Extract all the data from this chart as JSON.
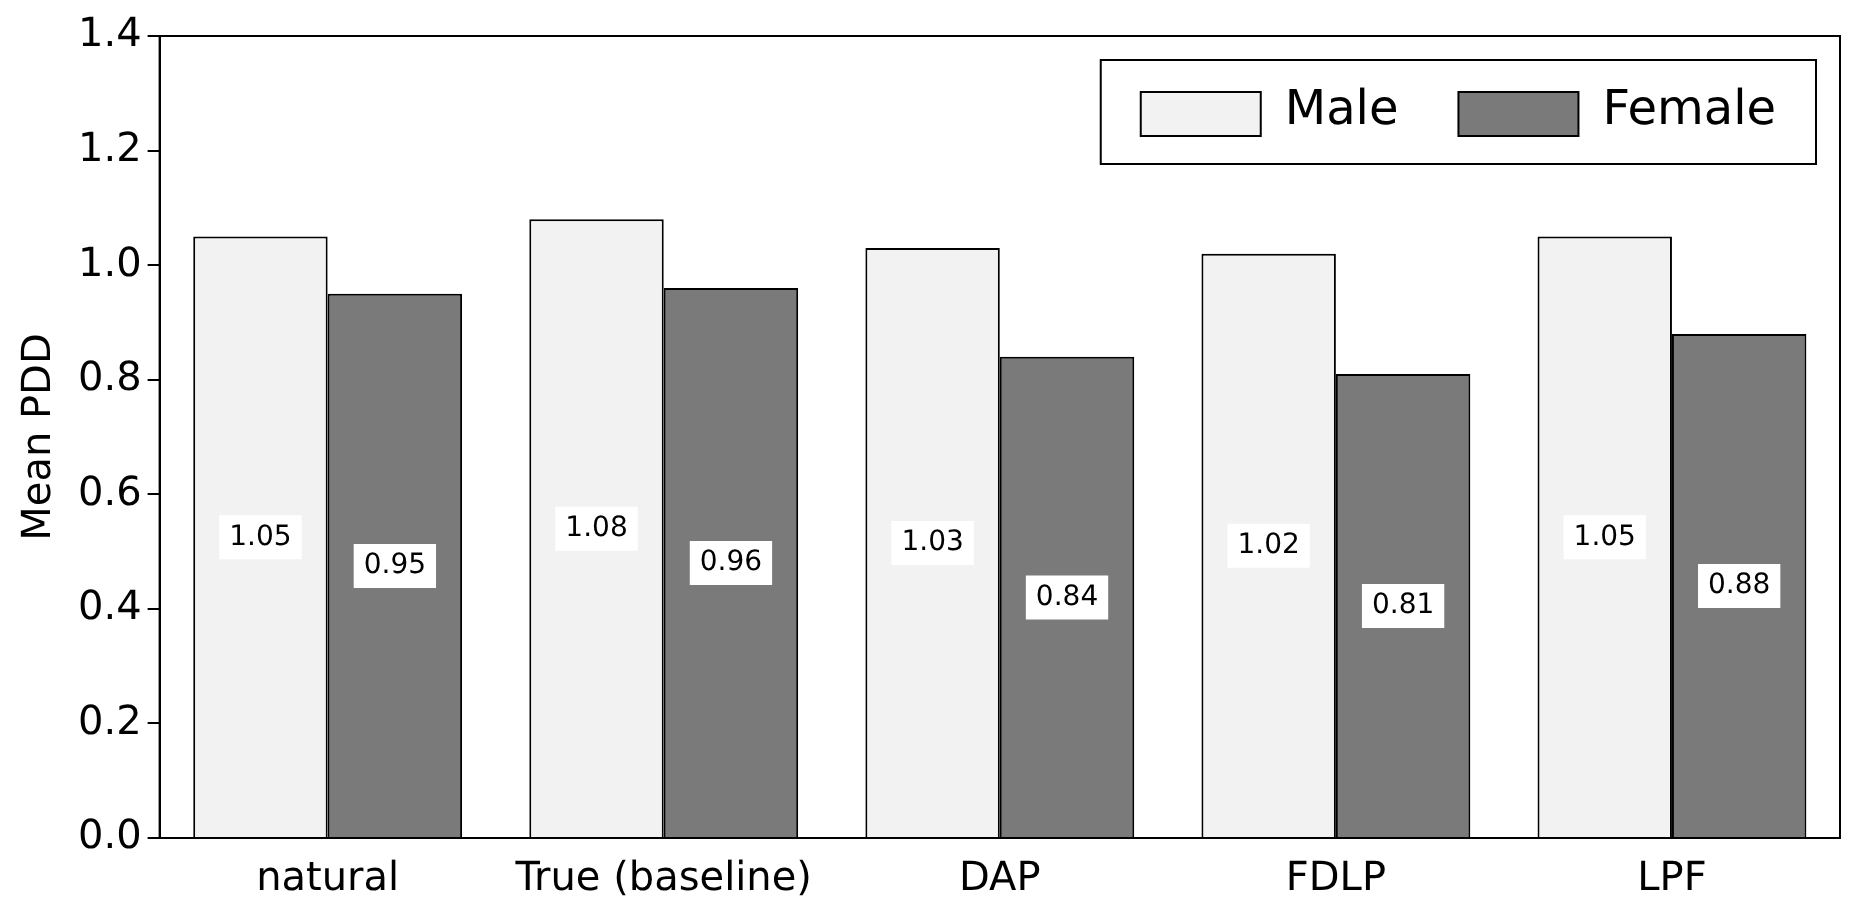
{
  "chart_data": {
    "type": "bar",
    "ylabel": "Mean PDD",
    "categories": [
      "natural",
      "True (baseline)",
      "DAP",
      "FDLP",
      "LPF"
    ],
    "series": [
      {
        "name": "Male",
        "color": "#f2f2f2",
        "values": [
          1.05,
          1.08,
          1.03,
          1.02,
          1.05
        ]
      },
      {
        "name": "Female",
        "color": "#7a7a7a",
        "values": [
          0.95,
          0.96,
          0.84,
          0.81,
          0.88
        ]
      }
    ],
    "ylim": [
      0,
      1.4
    ],
    "yticks": [
      {
        "value": 0,
        "label": "0.0"
      },
      {
        "value": 0.2,
        "label": "0.2"
      },
      {
        "value": 0.4,
        "label": "0.4"
      },
      {
        "value": 0.6,
        "label": "0.6"
      },
      {
        "value": 0.8,
        "label": "0.8"
      },
      {
        "value": 1.0,
        "label": "1.0"
      },
      {
        "value": 1.2,
        "label": "1.2"
      },
      {
        "value": 1.4,
        "label": "1.4"
      }
    ],
    "grid": false,
    "legend": "top right",
    "data_labels": true
  }
}
